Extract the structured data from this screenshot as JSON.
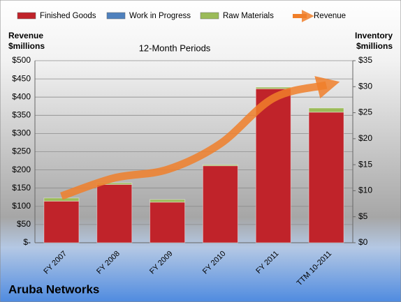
{
  "chart_data": {
    "type": "bar",
    "title": "Aruba Networks",
    "subtitle": "12-Month Periods",
    "y_label": [
      "Revenue",
      "$millions"
    ],
    "y2_label": [
      "Inventory",
      "$millions"
    ],
    "categories": [
      "FY 2007",
      "FY 2008",
      "FY 2009",
      "FY 2010",
      "FY 2011",
      "TTM 10-2011"
    ],
    "series": [
      {
        "name": "Finished Goods",
        "color": "#c0232a",
        "axis": "y2",
        "stacked": true,
        "values": [
          8.0,
          11.2,
          7.8,
          14.8,
          29.6,
          25.1
        ]
      },
      {
        "name": "Work in Progress",
        "color": "#4f81bd",
        "axis": "y2",
        "stacked": true,
        "values": [
          0,
          0,
          0,
          0,
          0,
          0
        ]
      },
      {
        "name": "Raw Materials",
        "color": "#9bbb59",
        "axis": "y2",
        "stacked": true,
        "values": [
          0.6,
          0.3,
          0.5,
          0.2,
          0.3,
          0.8
        ]
      },
      {
        "name": "Revenue",
        "color": "#f07f2a",
        "type": "line",
        "values": [
          128,
          178,
          201,
          272,
          397,
          433
        ]
      }
    ],
    "ylim": [
      0,
      500
    ],
    "yticks": [
      {
        "value": 0,
        "label": "$-"
      },
      {
        "value": 50,
        "label": "$50"
      },
      {
        "value": 100,
        "label": "$100"
      },
      {
        "value": 150,
        "label": "$150"
      },
      {
        "value": 200,
        "label": "$200"
      },
      {
        "value": 250,
        "label": "$250"
      },
      {
        "value": 300,
        "label": "$300"
      },
      {
        "value": 350,
        "label": "$350"
      },
      {
        "value": 400,
        "label": "$400"
      },
      {
        "value": 450,
        "label": "$450"
      },
      {
        "value": 500,
        "label": "$500"
      }
    ],
    "y2lim": [
      0,
      35
    ],
    "y2ticks": [
      {
        "value": 0,
        "label": "$0"
      },
      {
        "value": 5,
        "label": "$5"
      },
      {
        "value": 10,
        "label": "$10"
      },
      {
        "value": 15,
        "label": "$15"
      },
      {
        "value": 20,
        "label": "$20"
      },
      {
        "value": 25,
        "label": "$25"
      },
      {
        "value": 30,
        "label": "$30"
      },
      {
        "value": 35,
        "label": "$35"
      }
    ],
    "grid": true,
    "legend": "top"
  }
}
